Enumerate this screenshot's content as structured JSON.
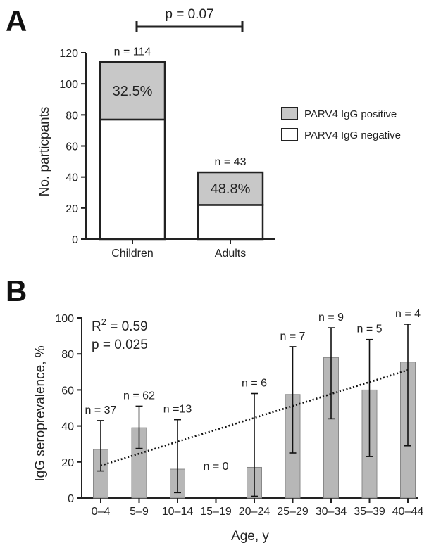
{
  "panel_a": {
    "label": "A",
    "significance": "p = 0.07",
    "legend": [
      "PARV4 IgG positive",
      "PARV4 IgG negative"
    ],
    "colors": {
      "positive": "#c8c8c8",
      "negative": "#ffffff"
    }
  },
  "panel_b": {
    "label": "B",
    "r2_prefix": "R",
    "r2_sup": "2",
    "r2_value": " = 0.59",
    "p_value": "p = 0.025",
    "bar_color": "#b7b7b7"
  },
  "chart_data": [
    {
      "type": "bar",
      "stacked": true,
      "categories": [
        "Children",
        "Adults"
      ],
      "ylabel": "No. particpants",
      "ylim": [
        0,
        120
      ],
      "yticks": [
        0,
        20,
        40,
        60,
        80,
        100,
        120
      ],
      "series": [
        {
          "name": "PARV4 IgG negative",
          "values": [
            77,
            22
          ]
        },
        {
          "name": "PARV4 IgG positive",
          "values": [
            37,
            21
          ]
        }
      ],
      "totals": [
        114,
        43
      ],
      "total_labels": [
        "n = 114",
        "n = 43"
      ],
      "percent_labels": [
        "32.5%",
        "48.8%"
      ],
      "annotation": "p = 0.07"
    },
    {
      "type": "bar",
      "categories": [
        "0–4",
        "5–9",
        "10–14",
        "15–19",
        "20–24",
        "25–29",
        "30–34",
        "35–39",
        "40–44"
      ],
      "values": [
        27,
        39,
        16,
        0,
        17,
        57.5,
        78,
        60,
        75.5
      ],
      "error_low": [
        15,
        27.5,
        3,
        0,
        1,
        25,
        44,
        23,
        29
      ],
      "error_high": [
        43,
        51,
        43.5,
        0,
        58,
        84,
        94.5,
        88,
        96.5
      ],
      "n_labels": [
        "n = 37",
        "n = 62",
        "n =13",
        "n = 0",
        "n = 6",
        "n = 7",
        "n = 9",
        "n = 5",
        "n = 4"
      ],
      "trendline": {
        "start": 18,
        "end": 71
      },
      "xlabel": "Age, y",
      "ylabel": "IgG seroprevalence, %",
      "ylim": [
        0,
        100
      ],
      "yticks": [
        0,
        20,
        40,
        60,
        80,
        100
      ]
    }
  ]
}
